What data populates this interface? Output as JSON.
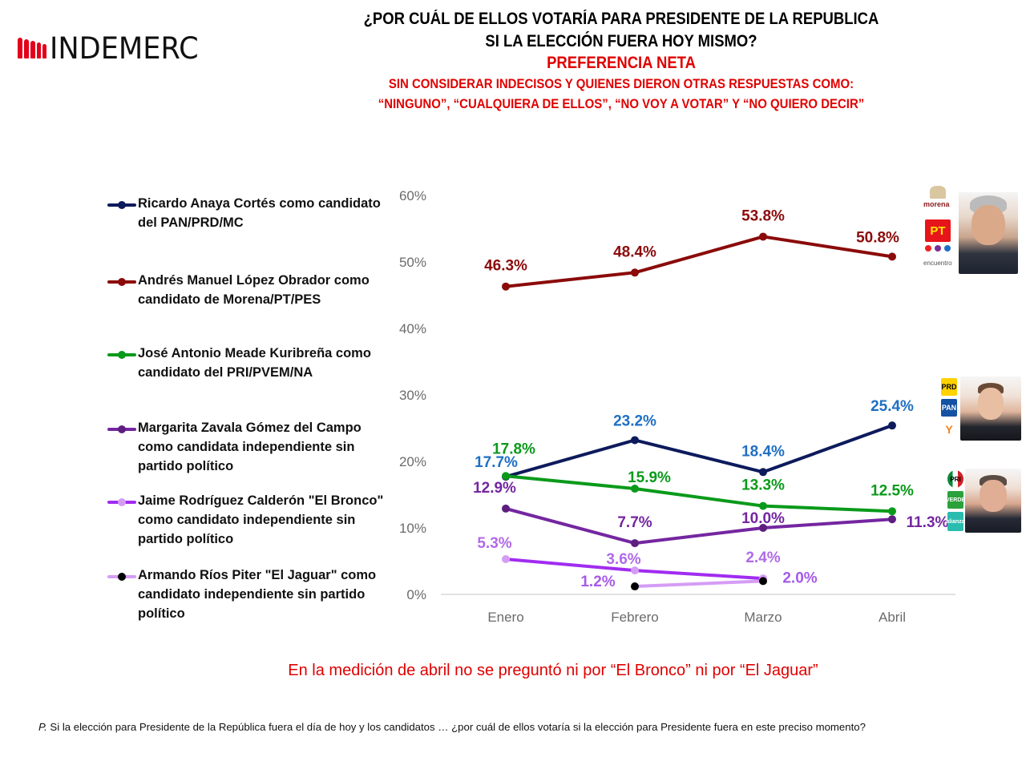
{
  "brand": {
    "logo_text": "INDEMERC",
    "logo_color": "#e2001a"
  },
  "header": {
    "title_line1": "¿POR CUÁL DE ELLOS VOTARÍA PARA PRESIDENTE DE LA REPUBLICA",
    "title_line2": "SI LA ELECCIÓN FUERA HOY MISMO?",
    "subtitle": "PREFERENCIA NETA",
    "condition_line1": "SIN CONSIDERAR INDECISOS Y QUIENES DIERON OTRAS RESPUESTAS COMO:",
    "condition_line2": "“NINGUNO”, “CUALQUIERA DE ELLOS”, “NO VOY A VOTAR” Y “NO QUIERO DECIR”"
  },
  "note": "En la medición de abril no se preguntó ni por “El Bronco” ni por “El Jaguar”",
  "footnote": {
    "prefix": "P.",
    "text": " Si la elección para Presidente de la República fuera el día de hoy y los candidatos … ¿por cuál de ellos votaría si la elección para Presidente fuera en este preciso momento?"
  },
  "candidate_images": [
    {
      "name": "Andrés Manuel López Obrador",
      "party_logos": [
        "morena",
        "PT",
        "encuentro social"
      ]
    },
    {
      "name": "Ricardo Anaya Cortés",
      "party_logos": [
        "PRD",
        "PAN",
        "Movimiento Ciudadano"
      ]
    },
    {
      "name": "José Antonio Meade Kuribreña",
      "party_logos": [
        "PRI",
        "VERDE",
        "alianza"
      ]
    }
  ],
  "chart_data": {
    "type": "line",
    "title": "¿POR CUÁL DE ELLOS VOTARÍA PARA PRESIDENTE DE LA REPUBLICA SI LA ELECCIÓN FUERA HOY MISMO? PREFERENCIA NETA",
    "xlabel": "",
    "ylabel": "",
    "categories": [
      "Enero",
      "Febrero",
      "Marzo",
      "Abril"
    ],
    "y_ticks": [
      "0%",
      "10%",
      "20%",
      "30%",
      "40%",
      "50%",
      "60%"
    ],
    "ylim": [
      0,
      60
    ],
    "grid": false,
    "legend_position": "left",
    "series": [
      {
        "name": "Ricardo Anaya Cortés como candidato del PAN/PRD/MC",
        "values": [
          17.7,
          23.2,
          18.4,
          25.4
        ],
        "labels": [
          "17.7%",
          "23.2%",
          "18.4%",
          "25.4%"
        ],
        "line_color": "#0d1a5c",
        "marker_color": "#0d1a5c",
        "label_color": "#1f6fc4"
      },
      {
        "name": "Andrés Manuel López Obrador como candidato de Morena/PT/PES",
        "values": [
          46.3,
          48.4,
          53.8,
          50.8
        ],
        "labels": [
          "46.3%",
          "48.4%",
          "53.8%",
          "50.8%"
        ],
        "line_color": "#8b0a0a",
        "marker_color": "#8b0a0a",
        "label_color": "#8b0a0a"
      },
      {
        "name": "José Antonio Meade Kuribreña como candidato del PRI/PVEM/NA",
        "values": [
          17.8,
          15.9,
          13.3,
          12.5
        ],
        "labels": [
          "17.8%",
          "15.9%",
          "13.3%",
          "12.5%"
        ],
        "line_color": "#0a9a1a",
        "marker_color": "#0a9a1a",
        "label_color": "#0a9a1a"
      },
      {
        "name": "Margarita Zavala Gómez del Campo como candidata independiente sin partido político",
        "values": [
          12.9,
          7.7,
          10.0,
          11.3
        ],
        "labels": [
          "12.9%",
          "7.7%",
          "10.0%",
          "11.3%"
        ],
        "line_color": "#7426a0",
        "marker_color": "#5e1e80",
        "label_color": "#7426a0"
      },
      {
        "name": "Jaime Rodríguez Calderón \"El Bronco\" como candidato independiente sin partido político",
        "values": [
          5.3,
          3.6,
          2.4,
          null
        ],
        "labels": [
          "5.3%",
          "3.6%",
          "2.4%",
          ""
        ],
        "line_color": "#a12cf0",
        "marker_color": "#d59cf5",
        "label_color": "#b06ae8"
      },
      {
        "name": "Armando Ríos Piter \"El Jaguar\" como candidato independiente sin partido político",
        "values": [
          null,
          1.2,
          2.0,
          null
        ],
        "labels": [
          "",
          "1.2%",
          "2.0%",
          ""
        ],
        "line_color": "#d59cf5",
        "marker_color": "#000000",
        "label_color": "#a65ae8"
      }
    ]
  }
}
